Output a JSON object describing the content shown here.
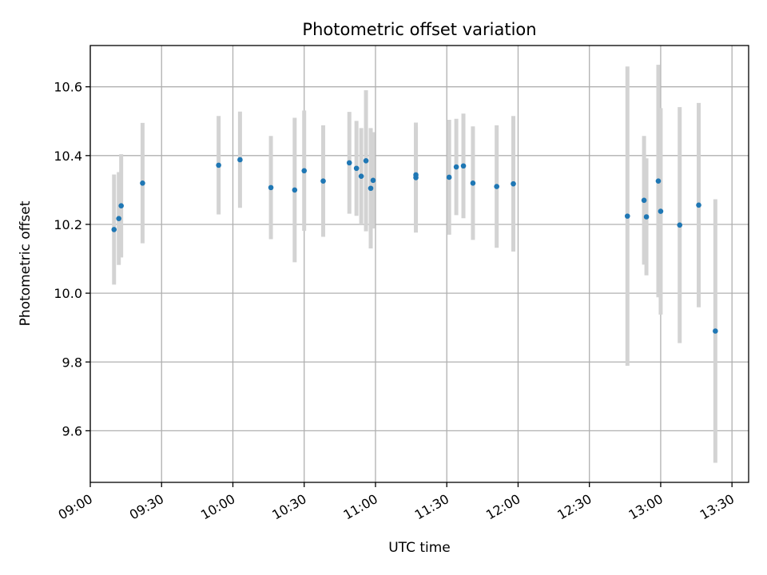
{
  "chart_data": {
    "type": "scatter",
    "title": "Photometric offset variation",
    "xlabel": "UTC time",
    "ylabel": "Photometric offset",
    "grid": true,
    "xlim": [
      "09:00",
      "13:37"
    ],
    "ylim": [
      9.45,
      10.72
    ],
    "x_ticks": [
      "09:00",
      "09:30",
      "10:00",
      "10:30",
      "11:00",
      "11:30",
      "12:00",
      "12:30",
      "13:00",
      "13:30"
    ],
    "y_ticks": [
      9.6,
      9.8,
      10.0,
      10.2,
      10.4,
      10.6
    ],
    "y_tick_labels": [
      "9.6",
      "9.8",
      "10.0",
      "10.2",
      "10.4",
      "10.6"
    ],
    "point_color": "#1f77b4",
    "errorbar_color": "#d3d3d3",
    "points": [
      {
        "t": "09:10",
        "y": 10.185,
        "err": 0.16
      },
      {
        "t": "09:12",
        "y": 10.217,
        "err": 0.135
      },
      {
        "t": "09:13",
        "y": 10.254,
        "err": 0.15
      },
      {
        "t": "09:22",
        "y": 10.32,
        "err": 0.175
      },
      {
        "t": "09:54",
        "y": 10.372,
        "err": 0.143
      },
      {
        "t": "10:03",
        "y": 10.388,
        "err": 0.14
      },
      {
        "t": "10:16",
        "y": 10.307,
        "err": 0.15
      },
      {
        "t": "10:26",
        "y": 10.3,
        "err": 0.21
      },
      {
        "t": "10:30",
        "y": 10.356,
        "err": 0.175
      },
      {
        "t": "10:38",
        "y": 10.326,
        "err": 0.162
      },
      {
        "t": "10:49",
        "y": 10.379,
        "err": 0.148
      },
      {
        "t": "10:52",
        "y": 10.363,
        "err": 0.138
      },
      {
        "t": "10:54",
        "y": 10.34,
        "err": 0.14
      },
      {
        "t": "10:56",
        "y": 10.385,
        "err": 0.205
      },
      {
        "t": "10:58",
        "y": 10.305,
        "err": 0.175
      },
      {
        "t": "10:59",
        "y": 10.328,
        "err": 0.14
      },
      {
        "t": "11:17",
        "y": 10.336,
        "err": 0.16
      },
      {
        "t": "11:17",
        "y": 10.344,
        "err": 0.14
      },
      {
        "t": "11:31",
        "y": 10.337,
        "err": 0.167
      },
      {
        "t": "11:34",
        "y": 10.367,
        "err": 0.14
      },
      {
        "t": "11:37",
        "y": 10.37,
        "err": 0.152
      },
      {
        "t": "11:41",
        "y": 10.32,
        "err": 0.165
      },
      {
        "t": "11:51",
        "y": 10.31,
        "err": 0.178
      },
      {
        "t": "11:58",
        "y": 10.318,
        "err": 0.197
      },
      {
        "t": "12:46",
        "y": 10.224,
        "err": 0.435
      },
      {
        "t": "12:53",
        "y": 10.27,
        "err": 0.187
      },
      {
        "t": "12:54",
        "y": 10.222,
        "err": 0.17
      },
      {
        "t": "12:59",
        "y": 10.326,
        "err": 0.338
      },
      {
        "t": "13:00",
        "y": 10.238,
        "err": 0.3
      },
      {
        "t": "13:08",
        "y": 10.198,
        "err": 0.343
      },
      {
        "t": "13:16",
        "y": 10.256,
        "err": 0.297
      },
      {
        "t": "13:23",
        "y": 9.89,
        "err": 0.383
      }
    ]
  }
}
